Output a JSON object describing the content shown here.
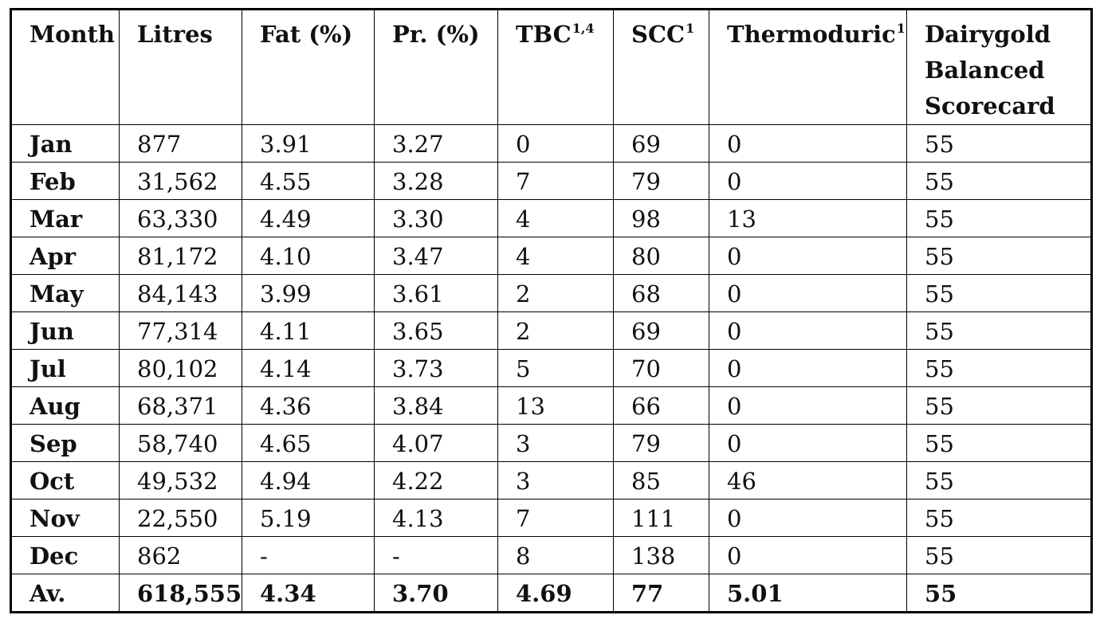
{
  "table": {
    "headers": [
      {
        "label": "Month",
        "sup": ""
      },
      {
        "label": "Litres",
        "sup": ""
      },
      {
        "label": "Fat (%)",
        "sup": ""
      },
      {
        "label": "Pr. (%)",
        "sup": ""
      },
      {
        "label": "TBC",
        "sup": "1,4"
      },
      {
        "label": "SCC",
        "sup": "1"
      },
      {
        "label": "Thermoduric",
        "sup": "1"
      },
      {
        "label": "Dairygold Balanced Scorecard",
        "sup": ""
      }
    ],
    "rows": [
      [
        "Jan",
        "877",
        "3.91",
        "3.27",
        "0",
        "69",
        "0",
        "55"
      ],
      [
        "Feb",
        "31,562",
        "4.55",
        "3.28",
        "7",
        "79",
        "0",
        "55"
      ],
      [
        "Mar",
        "63,330",
        "4.49",
        "3.30",
        "4",
        "98",
        "13",
        "55"
      ],
      [
        "Apr",
        "81,172",
        "4.10",
        "3.47",
        "4",
        "80",
        "0",
        "55"
      ],
      [
        "May",
        "84,143",
        "3.99",
        "3.61",
        "2",
        "68",
        "0",
        "55"
      ],
      [
        "Jun",
        "77,314",
        "4.11",
        "3.65",
        "2",
        "69",
        "0",
        "55"
      ],
      [
        "Jul",
        "80,102",
        "4.14",
        "3.73",
        "5",
        "70",
        "0",
        "55"
      ],
      [
        "Aug",
        "68,371",
        "4.36",
        "3.84",
        "13",
        "66",
        "0",
        "55"
      ],
      [
        "Sep",
        "58,740",
        "4.65",
        "4.07",
        "3",
        "79",
        "0",
        "55"
      ],
      [
        "Oct",
        "49,532",
        "4.94",
        "4.22",
        "3",
        "85",
        "46",
        "55"
      ],
      [
        "Nov",
        "22,550",
        "5.19",
        "4.13",
        "7",
        "111",
        "0",
        "55"
      ],
      [
        "Dec",
        "862",
        "-",
        "-",
        "8",
        "138",
        "0",
        "55"
      ]
    ],
    "average": [
      "Av.",
      "618,555",
      "4.34",
      "3.70",
      "4.69",
      "77",
      "5.01",
      "55"
    ]
  }
}
